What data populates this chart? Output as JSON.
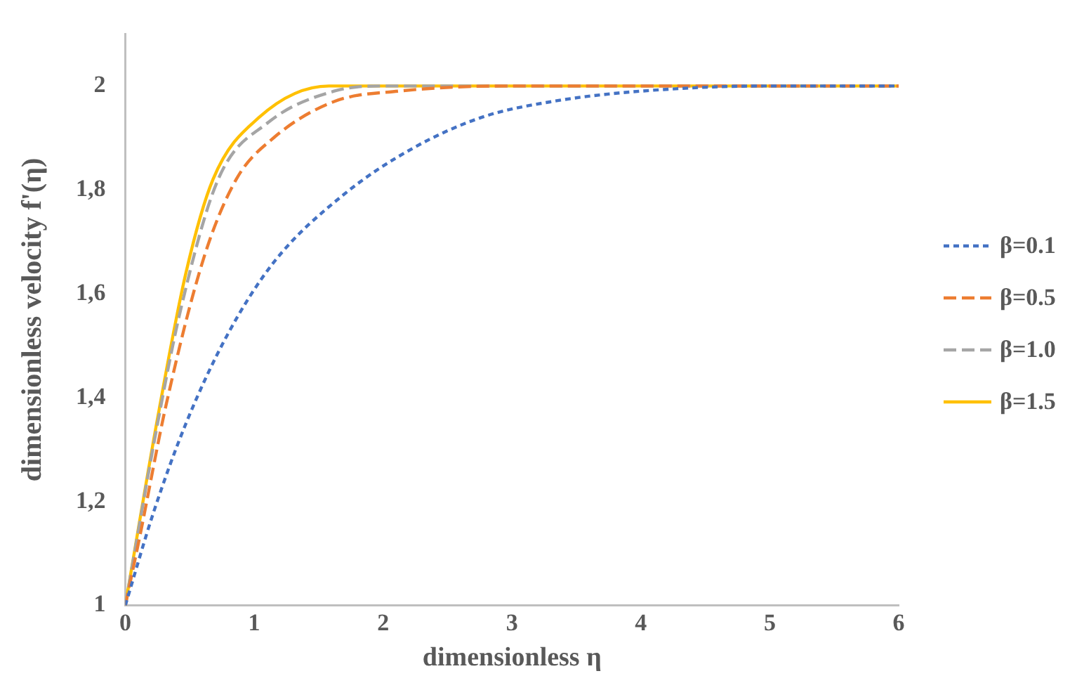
{
  "chart_data": {
    "type": "line",
    "xlabel": "dimensionless η",
    "ylabel": "dimensionless velocity f'(η)",
    "xlim": [
      0,
      6
    ],
    "xticks": [
      0,
      1,
      2,
      3,
      4,
      5,
      6
    ],
    "ylim": [
      1,
      2.1
    ],
    "yticks": [
      {
        "value": 1,
        "label": "1"
      },
      {
        "value": 1.2,
        "label": "1,2"
      },
      {
        "value": 1.4,
        "label": "1,4"
      },
      {
        "value": 1.6,
        "label": "1,6"
      },
      {
        "value": 1.8,
        "label": "1,8"
      },
      {
        "value": 2,
        "label": "2"
      }
    ],
    "grid": false,
    "legend": "right",
    "marker": "none",
    "series": [
      {
        "name": "β=0.1",
        "color": "#4472c4",
        "line_style": "dotted",
        "x": [
          0,
          0.22,
          0.47,
          0.79,
          1.15,
          1.69,
          2.23,
          2.77,
          3.31,
          4,
          5,
          6
        ],
        "values": [
          1,
          1.18,
          1.35,
          1.52,
          1.66,
          1.79,
          1.88,
          1.94,
          1.97,
          1.99,
          2,
          2
        ]
      },
      {
        "name": "β=0.5",
        "color": "#ed7d31",
        "line_style": "dashed",
        "x": [
          0,
          0.11,
          0.32,
          0.61,
          0.86,
          1.15,
          1.62,
          2.12,
          3,
          4,
          5,
          6
        ],
        "values": [
          1,
          1.13,
          1.39,
          1.67,
          1.82,
          1.9,
          1.97,
          1.99,
          2,
          2,
          2,
          2
        ]
      },
      {
        "name": "β=1.0",
        "color": "#a5a5a5",
        "line_style": "dashed",
        "x": [
          0,
          0.25,
          0.43,
          0.72,
          1.11,
          1.62,
          2,
          5,
          6
        ],
        "values": [
          1,
          1.35,
          1.57,
          1.82,
          1.93,
          1.99,
          2,
          2,
          2
        ]
      },
      {
        "name": "β=1.5",
        "color": "#ffc000",
        "line_style": "solid",
        "x": [
          0,
          0.25,
          0.47,
          0.68,
          1.04,
          1.58,
          2,
          3,
          4,
          5,
          6
        ],
        "values": [
          1,
          1.36,
          1.64,
          1.82,
          1.94,
          2,
          2,
          2,
          2,
          2,
          2
        ]
      }
    ]
  }
}
